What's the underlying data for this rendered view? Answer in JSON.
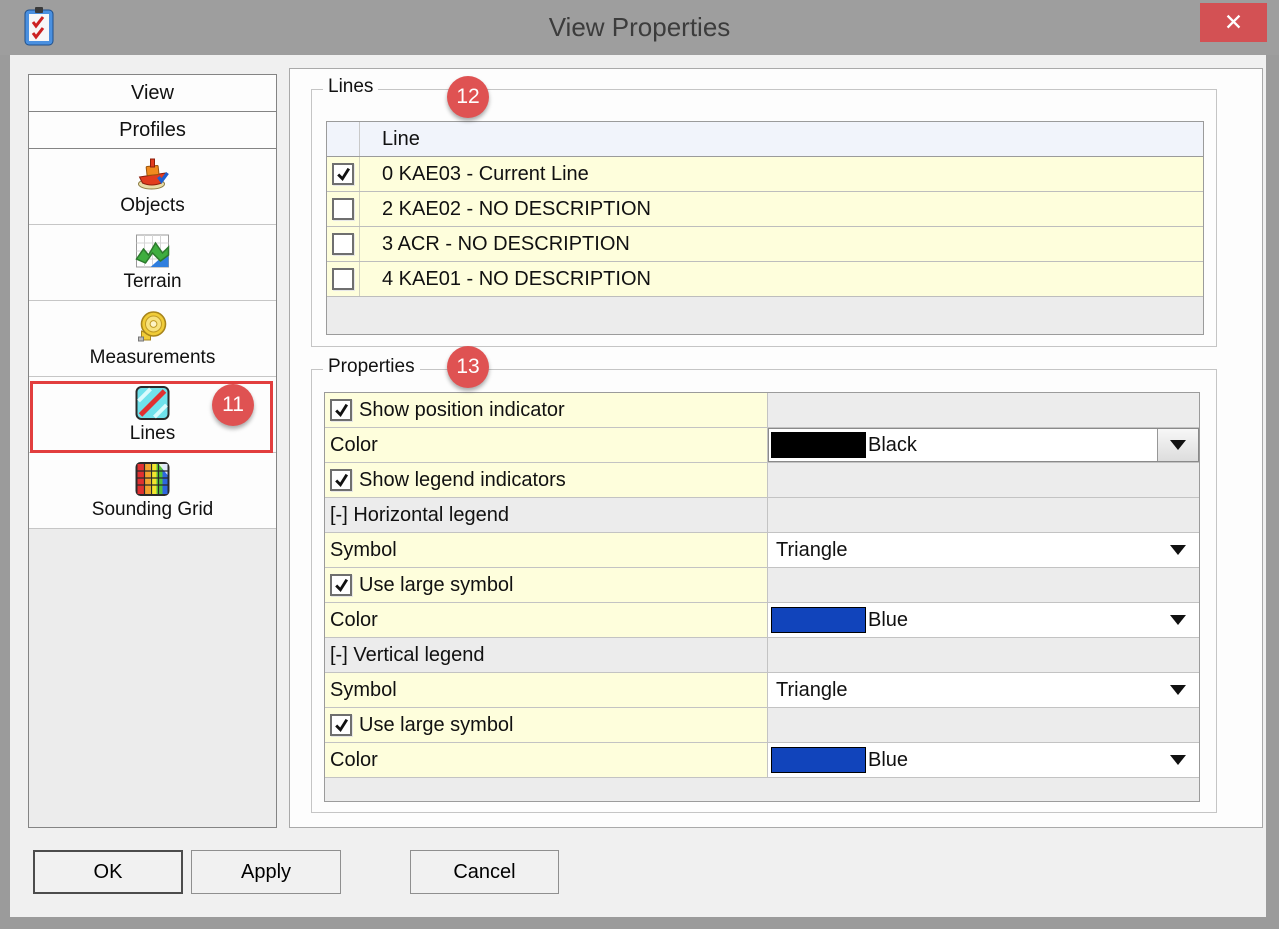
{
  "window": {
    "title": "View Properties",
    "close_glyph": "✕"
  },
  "sidebar": {
    "tabs": [
      {
        "label": "View"
      },
      {
        "label": "Profiles"
      }
    ],
    "items": [
      {
        "label": "Objects",
        "icon": "boat-icon",
        "selected": false
      },
      {
        "label": "Terrain",
        "icon": "terrain-icon",
        "selected": false
      },
      {
        "label": "Measurements",
        "icon": "tape-measure-icon",
        "selected": false
      },
      {
        "label": "Lines",
        "icon": "lines-icon",
        "selected": true,
        "badge": "11"
      },
      {
        "label": "Sounding Grid",
        "icon": "sounding-grid-icon",
        "selected": false
      }
    ]
  },
  "lines_group": {
    "title": "Lines",
    "badge": "12",
    "table": {
      "column_header": "Line",
      "rows": [
        {
          "checked": true,
          "label": "0 KAE03 - Current Line"
        },
        {
          "checked": false,
          "label": "2 KAE02 - NO DESCRIPTION"
        },
        {
          "checked": false,
          "label": "3 ACR - NO DESCRIPTION"
        },
        {
          "checked": false,
          "label": "4 KAE01 - NO DESCRIPTION"
        }
      ]
    }
  },
  "properties_group": {
    "title": "Properties",
    "badge": "13",
    "rows": [
      {
        "type": "checkbox",
        "label": "Show position indicator",
        "checked": true
      },
      {
        "type": "color",
        "label": "Color",
        "value": "Black",
        "swatch": "#000000",
        "focused": true
      },
      {
        "type": "checkbox",
        "label": "Show legend indicators",
        "checked": true
      },
      {
        "type": "category",
        "label": "[-] Horizontal legend"
      },
      {
        "type": "dropdown",
        "label": "Symbol",
        "value": "Triangle"
      },
      {
        "type": "checkbox",
        "label": "Use large symbol",
        "checked": true
      },
      {
        "type": "color",
        "label": "Color",
        "value": "Blue",
        "swatch": "#1144bb",
        "focused": false
      },
      {
        "type": "category",
        "label": "[-] Vertical legend"
      },
      {
        "type": "dropdown",
        "label": "Symbol",
        "value": "Triangle"
      },
      {
        "type": "checkbox",
        "label": "Use large symbol",
        "checked": true
      },
      {
        "type": "color",
        "label": "Color",
        "value": "Blue",
        "swatch": "#1144bb",
        "focused": false
      }
    ]
  },
  "footer": {
    "buttons": [
      {
        "label": "OK",
        "default": true
      },
      {
        "label": "Apply",
        "default": false
      },
      {
        "label": "Cancel",
        "default": false
      }
    ]
  },
  "colors": {
    "accent_badge_red": "#df5252",
    "annotation_border_red": "#e23e3e",
    "close_button_red": "#d35154",
    "row_yellow": "#fefedc",
    "header_blue": "#f1f4fb",
    "swatch_black": "#000000",
    "swatch_blue": "#1144bb"
  }
}
